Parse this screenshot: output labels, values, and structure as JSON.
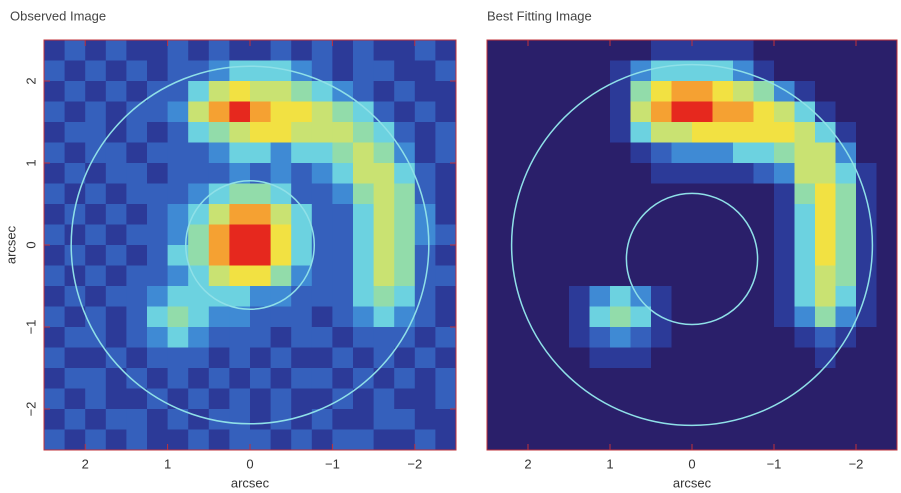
{
  "chart_data": [
    {
      "type": "heatmap",
      "title": "Observed Image",
      "xlabel": "arcsec",
      "ylabel": "arcsec",
      "xlim": [
        2.5,
        -2.5
      ],
      "ylim": [
        -2.5,
        2.5
      ],
      "xticks": [
        2,
        1,
        0,
        {
          "value": -1,
          "label": "−1"
        },
        {
          "value": -2,
          "label": "−2"
        }
      ],
      "yticks": [
        {
          "value": -2,
          "label": "−2"
        },
        {
          "value": -1,
          "label": "−1"
        },
        0,
        1,
        2
      ],
      "colormap": [
        "#2a1f6a",
        "#2c3a98",
        "#3560bc",
        "#3f8ad4",
        "#6cd2e0",
        "#92dcaa",
        "#c9e272",
        "#f2e142",
        "#f5a132",
        "#e6281e"
      ],
      "circle_color": "#8fe0e8",
      "circles": [
        {
          "x": 0,
          "y": 0,
          "r": 2.17
        },
        {
          "x": 0,
          "y": 0,
          "r": 0.78
        }
      ],
      "values": [
        [
          1,
          2,
          1,
          2,
          1,
          1,
          2,
          1,
          2,
          1,
          1,
          2,
          1,
          2,
          1,
          2,
          1,
          1,
          2,
          1
        ],
        [
          2,
          1,
          2,
          1,
          2,
          1,
          2,
          2,
          3,
          4,
          4,
          4,
          3,
          2,
          1,
          2,
          2,
          1,
          1,
          2
        ],
        [
          1,
          2,
          1,
          2,
          1,
          2,
          2,
          4,
          6,
          7,
          6,
          6,
          5,
          4,
          3,
          2,
          1,
          2,
          1,
          1
        ],
        [
          2,
          1,
          2,
          1,
          2,
          2,
          3,
          6,
          8,
          9,
          8,
          7,
          7,
          6,
          5,
          4,
          2,
          1,
          2,
          1
        ],
        [
          1,
          2,
          2,
          1,
          2,
          1,
          2,
          4,
          5,
          6,
          7,
          7,
          6,
          6,
          6,
          5,
          4,
          2,
          1,
          2
        ],
        [
          2,
          1,
          2,
          2,
          1,
          2,
          2,
          2,
          3,
          4,
          4,
          3,
          4,
          4,
          5,
          6,
          5,
          3,
          1,
          2
        ],
        [
          1,
          2,
          1,
          2,
          2,
          1,
          2,
          2,
          2,
          3,
          2,
          3,
          2,
          3,
          4,
          6,
          6,
          4,
          2,
          1
        ],
        [
          2,
          1,
          2,
          1,
          2,
          2,
          2,
          3,
          4,
          5,
          5,
          4,
          2,
          2,
          3,
          5,
          6,
          5,
          2,
          1
        ],
        [
          1,
          2,
          1,
          2,
          1,
          2,
          3,
          4,
          6,
          8,
          8,
          6,
          4,
          2,
          2,
          4,
          6,
          5,
          3,
          1
        ],
        [
          2,
          1,
          2,
          1,
          2,
          2,
          3,
          5,
          8,
          9,
          9,
          7,
          4,
          2,
          2,
          4,
          6,
          5,
          3,
          2
        ],
        [
          1,
          2,
          1,
          2,
          1,
          2,
          4,
          5,
          8,
          9,
          9,
          7,
          4,
          2,
          2,
          4,
          6,
          5,
          2,
          1
        ],
        [
          2,
          1,
          2,
          1,
          2,
          2,
          3,
          4,
          6,
          7,
          7,
          5,
          3,
          2,
          2,
          4,
          6,
          5,
          2,
          2
        ],
        [
          1,
          2,
          1,
          2,
          2,
          3,
          4,
          4,
          4,
          4,
          3,
          3,
          2,
          2,
          2,
          4,
          5,
          4,
          2,
          1
        ],
        [
          2,
          1,
          2,
          1,
          2,
          4,
          5,
          4,
          3,
          3,
          2,
          2,
          2,
          1,
          2,
          3,
          4,
          3,
          2,
          1
        ],
        [
          1,
          2,
          2,
          1,
          2,
          3,
          4,
          3,
          2,
          2,
          2,
          1,
          2,
          2,
          1,
          2,
          2,
          2,
          1,
          2
        ],
        [
          2,
          1,
          1,
          2,
          1,
          2,
          2,
          2,
          1,
          2,
          1,
          2,
          1,
          1,
          2,
          1,
          2,
          1,
          2,
          1
        ],
        [
          1,
          2,
          2,
          1,
          2,
          1,
          2,
          1,
          2,
          1,
          2,
          1,
          2,
          2,
          1,
          2,
          1,
          2,
          1,
          2
        ],
        [
          2,
          1,
          2,
          1,
          1,
          2,
          1,
          2,
          1,
          2,
          1,
          2,
          1,
          1,
          2,
          1,
          2,
          1,
          1,
          2
        ],
        [
          1,
          2,
          1,
          2,
          2,
          1,
          2,
          1,
          2,
          2,
          1,
          2,
          1,
          2,
          1,
          1,
          2,
          2,
          1,
          1
        ],
        [
          2,
          1,
          2,
          1,
          2,
          1,
          1,
          2,
          1,
          2,
          2,
          1,
          2,
          1,
          2,
          2,
          1,
          1,
          2,
          1
        ]
      ]
    },
    {
      "type": "heatmap",
      "title": "Best Fitting Image",
      "xlabel": "arcsec",
      "xlim": [
        2.5,
        -2.5
      ],
      "ylim": [
        -2.5,
        2.5
      ],
      "xticks": [
        2,
        1,
        0,
        {
          "value": -1,
          "label": "−1"
        },
        {
          "value": -2,
          "label": "−2"
        }
      ],
      "colormap": [
        "#2a1f6a",
        "#2c3a98",
        "#3560bc",
        "#3f8ad4",
        "#6cd2e0",
        "#92dcaa",
        "#c9e272",
        "#f2e142",
        "#f5a132",
        "#e6281e"
      ],
      "circle_color": "#8fe0e8",
      "circles": [
        {
          "x": 0,
          "y": 0,
          "r": 2.2
        },
        {
          "x": 0,
          "y": -0.17,
          "r": 0.8
        }
      ],
      "values": [
        [
          0,
          0,
          0,
          0,
          0,
          0,
          0,
          0,
          1,
          1,
          1,
          1,
          1,
          0,
          0,
          0,
          0,
          0,
          0,
          0
        ],
        [
          0,
          0,
          0,
          0,
          0,
          0,
          1,
          3,
          4,
          4,
          4,
          4,
          3,
          1,
          0,
          0,
          0,
          0,
          0,
          0
        ],
        [
          0,
          0,
          0,
          0,
          0,
          0,
          1,
          5,
          7,
          8,
          8,
          7,
          6,
          5,
          3,
          1,
          0,
          0,
          0,
          0
        ],
        [
          0,
          0,
          0,
          0,
          0,
          0,
          1,
          6,
          8,
          9,
          9,
          8,
          8,
          7,
          6,
          4,
          1,
          0,
          0,
          0
        ],
        [
          0,
          0,
          0,
          0,
          0,
          0,
          1,
          4,
          6,
          6,
          7,
          7,
          7,
          7,
          7,
          6,
          4,
          1,
          0,
          0
        ],
        [
          0,
          0,
          0,
          0,
          0,
          0,
          0,
          1,
          2,
          3,
          3,
          3,
          4,
          4,
          5,
          6,
          6,
          3,
          0,
          0
        ],
        [
          0,
          0,
          0,
          0,
          0,
          0,
          0,
          0,
          1,
          1,
          1,
          1,
          1,
          2,
          3,
          6,
          6,
          4,
          1,
          0
        ],
        [
          0,
          0,
          0,
          0,
          0,
          0,
          0,
          0,
          0,
          0,
          0,
          0,
          0,
          0,
          1,
          5,
          7,
          5,
          1,
          0
        ],
        [
          0,
          0,
          0,
          0,
          0,
          0,
          0,
          0,
          0,
          0,
          0,
          0,
          0,
          0,
          1,
          4,
          7,
          5,
          1,
          0
        ],
        [
          0,
          0,
          0,
          0,
          0,
          0,
          0,
          0,
          0,
          0,
          0,
          0,
          0,
          0,
          1,
          4,
          7,
          5,
          1,
          0
        ],
        [
          0,
          0,
          0,
          0,
          0,
          0,
          0,
          0,
          0,
          0,
          0,
          0,
          0,
          0,
          1,
          4,
          7,
          5,
          1,
          0
        ],
        [
          0,
          0,
          0,
          0,
          0,
          0,
          0,
          0,
          0,
          0,
          0,
          0,
          0,
          0,
          1,
          4,
          6,
          5,
          1,
          0
        ],
        [
          0,
          0,
          0,
          0,
          1,
          3,
          4,
          3,
          1,
          0,
          0,
          0,
          0,
          0,
          1,
          4,
          6,
          4,
          1,
          0
        ],
        [
          0,
          0,
          0,
          0,
          1,
          4,
          5,
          4,
          1,
          0,
          0,
          0,
          0,
          0,
          1,
          3,
          5,
          3,
          1,
          0
        ],
        [
          0,
          0,
          0,
          0,
          1,
          2,
          3,
          2,
          1,
          0,
          0,
          0,
          0,
          0,
          0,
          1,
          2,
          1,
          0,
          0
        ],
        [
          0,
          0,
          0,
          0,
          0,
          1,
          1,
          1,
          0,
          0,
          0,
          0,
          0,
          0,
          0,
          0,
          1,
          0,
          0,
          0
        ],
        [
          0,
          0,
          0,
          0,
          0,
          0,
          0,
          0,
          0,
          0,
          0,
          0,
          0,
          0,
          0,
          0,
          0,
          0,
          0,
          0
        ],
        [
          0,
          0,
          0,
          0,
          0,
          0,
          0,
          0,
          0,
          0,
          0,
          0,
          0,
          0,
          0,
          0,
          0,
          0,
          0,
          0
        ],
        [
          0,
          0,
          0,
          0,
          0,
          0,
          0,
          0,
          0,
          0,
          0,
          0,
          0,
          0,
          0,
          0,
          0,
          0,
          0,
          0
        ],
        [
          0,
          0,
          0,
          0,
          0,
          0,
          0,
          0,
          0,
          0,
          0,
          0,
          0,
          0,
          0,
          0,
          0,
          0,
          0,
          0
        ]
      ]
    }
  ]
}
